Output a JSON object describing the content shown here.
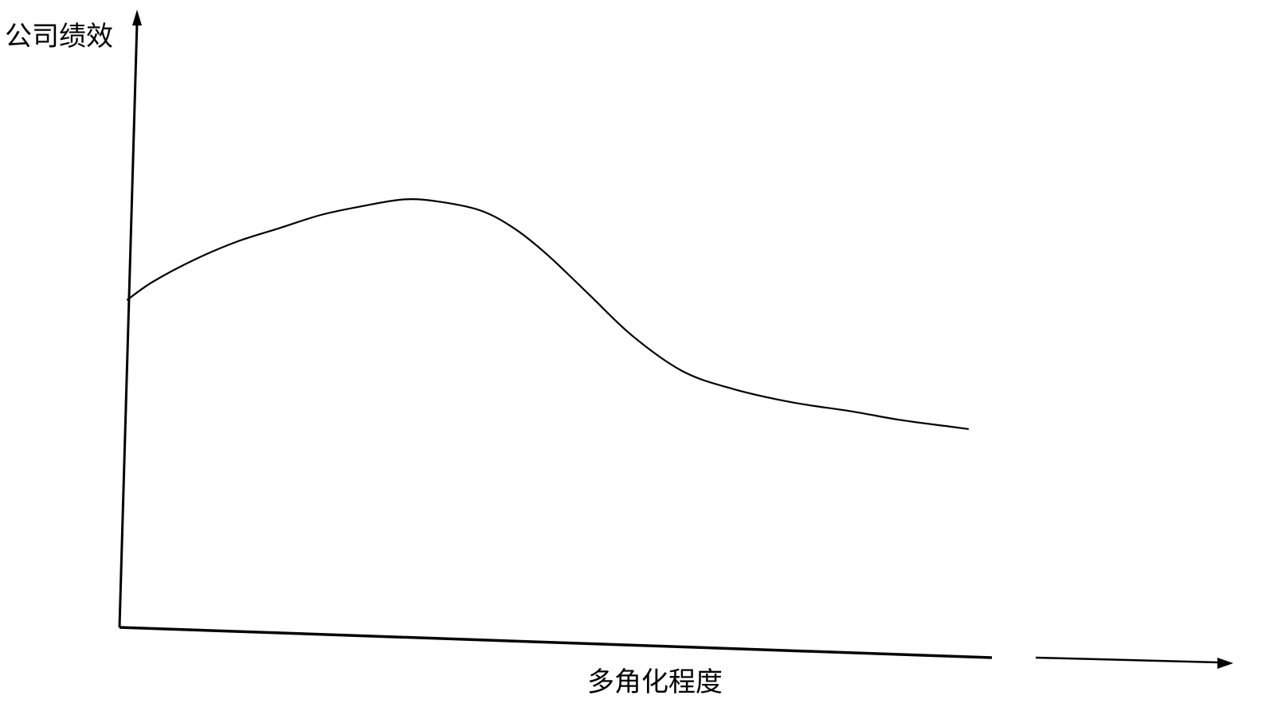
{
  "chart_data": {
    "type": "line",
    "ylabel": "公司绩效",
    "xlabel": "多角化程度",
    "grid": false,
    "legend": "none",
    "axis_ticks": false,
    "series": [
      {
        "x": [
          0,
          3,
          8,
          13,
          18,
          23,
          28,
          33,
          37,
          42,
          46,
          50,
          55,
          60,
          66,
          72,
          79,
          86,
          92,
          98,
          100
        ],
        "y": [
          56,
          60,
          65,
          69,
          72,
          75,
          77,
          78.5,
          78,
          76,
          72,
          66,
          57,
          48,
          40,
          36,
          33,
          31,
          29,
          27.5,
          27
        ]
      }
    ],
    "colors": {
      "line": "#000000",
      "background": "#ffffff"
    }
  }
}
